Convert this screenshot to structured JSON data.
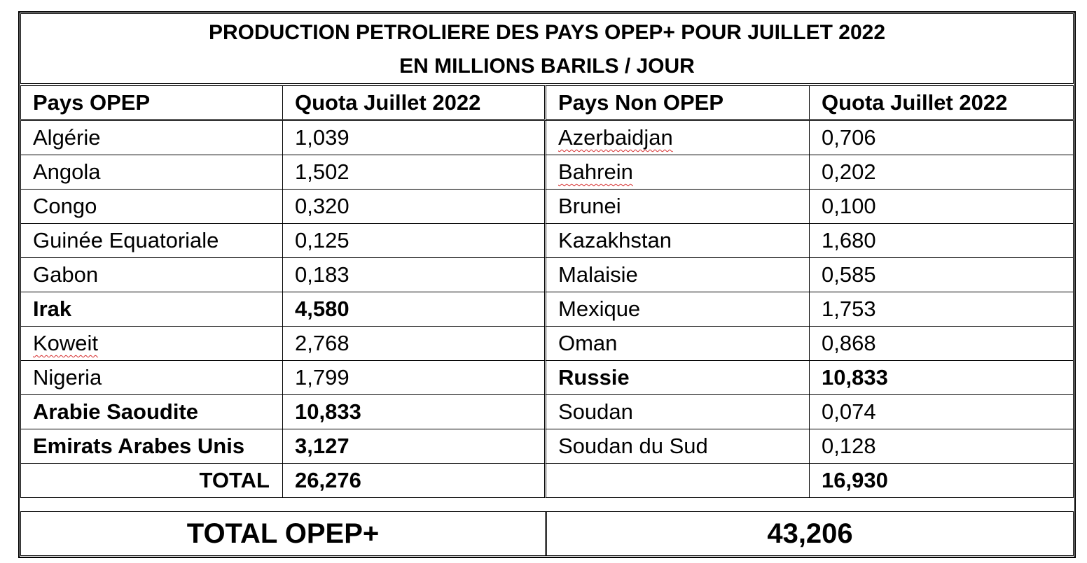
{
  "title": {
    "line1": "PRODUCTION PETROLIERE DES PAYS OPEP+ POUR JUILLET 2022",
    "line2": "EN MILLIONS BARILS / JOUR"
  },
  "headers": {
    "opep_country": "Pays OPEP",
    "opep_quota": "Quota Juillet 2022",
    "non_opep_country": "Pays Non OPEP",
    "non_opep_quota": "Quota Juillet 2022"
  },
  "rows": [
    {
      "opep_country": "Algérie",
      "opep_quota": "1,039",
      "non_opep_country": "Azerbaidjan",
      "non_opep_quota": "0,706"
    },
    {
      "opep_country": "Angola",
      "opep_quota": "1,502",
      "non_opep_country": "Bahrein",
      "non_opep_quota": "0,202"
    },
    {
      "opep_country": "Congo",
      "opep_quota": "0,320",
      "non_opep_country": "Brunei",
      "non_opep_quota": "0,100"
    },
    {
      "opep_country": "Guinée Equatoriale",
      "opep_quota": "0,125",
      "non_opep_country": "Kazakhstan",
      "non_opep_quota": "1,680"
    },
    {
      "opep_country": "Gabon",
      "opep_quota": "0,183",
      "non_opep_country": "Malaisie",
      "non_opep_quota": "0,585"
    },
    {
      "opep_country": "Irak",
      "opep_quota": "4,580",
      "non_opep_country": "Mexique",
      "non_opep_quota": "1,753"
    },
    {
      "opep_country": "Koweit",
      "opep_quota": "2,768",
      "non_opep_country": "Oman",
      "non_opep_quota": "0,868"
    },
    {
      "opep_country": "Nigeria",
      "opep_quota": "1,799",
      "non_opep_country": "Russie",
      "non_opep_quota": "10,833"
    },
    {
      "opep_country": "Arabie Saoudite",
      "opep_quota": "10,833",
      "non_opep_country": "Soudan",
      "non_opep_quota": "0,074"
    },
    {
      "opep_country": "Emirats Arabes Unis",
      "opep_quota": "3,127",
      "non_opep_country": "Soudan du Sud",
      "non_opep_quota": "0,128"
    }
  ],
  "totals": {
    "label": "TOTAL",
    "opep_total": "26,276",
    "non_opep_label": "",
    "non_opep_total": "16,930"
  },
  "grand_total": {
    "label": "TOTAL OPEP+",
    "value": "43,206"
  }
}
